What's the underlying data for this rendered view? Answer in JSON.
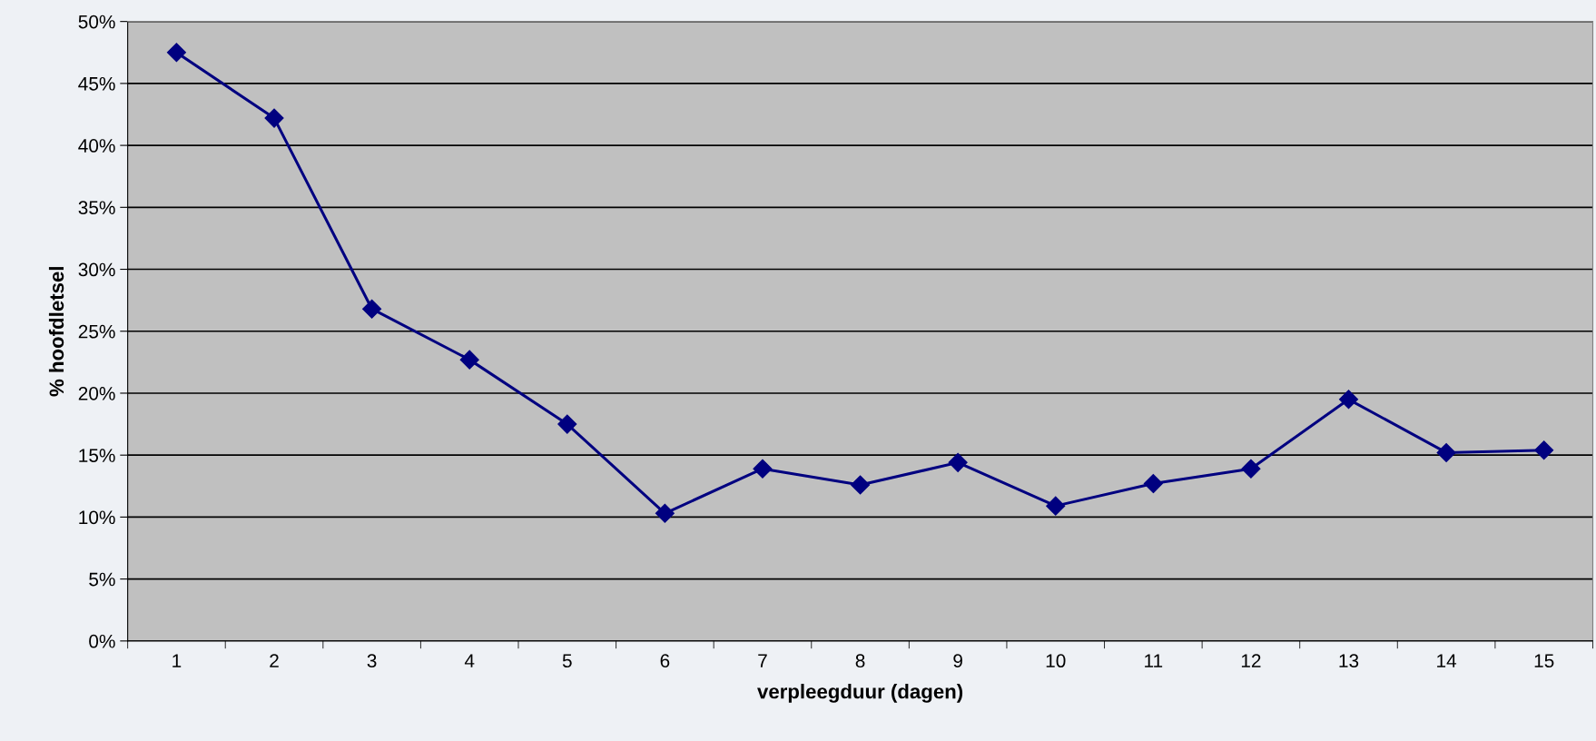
{
  "chart_data": {
    "type": "line",
    "xlabel": "verpleegduur (dagen)",
    "ylabel": "% hoofdletsel",
    "categories": [
      "1",
      "2",
      "3",
      "4",
      "5",
      "6",
      "7",
      "8",
      "9",
      "10",
      "11",
      "12",
      "13",
      "14",
      "15"
    ],
    "series": [
      {
        "color": "#000080",
        "values": [
          47.5,
          42.2,
          26.8,
          22.7,
          17.5,
          10.3,
          13.9,
          12.6,
          14.4,
          10.9,
          12.7,
          13.9,
          19.5,
          15.2,
          15.4
        ]
      }
    ],
    "ylim": [
      0,
      50
    ],
    "yticks": [
      {
        "value": 0,
        "label": "0%"
      },
      {
        "value": 5,
        "label": "5%"
      },
      {
        "value": 10,
        "label": "10%"
      },
      {
        "value": 15,
        "label": "15%"
      },
      {
        "value": 20,
        "label": "20%"
      },
      {
        "value": 25,
        "label": "25%"
      },
      {
        "value": 30,
        "label": "30%"
      },
      {
        "value": 35,
        "label": "35%"
      },
      {
        "value": 40,
        "label": "40%"
      },
      {
        "value": 45,
        "label": "45%"
      },
      {
        "value": 50,
        "label": "50%"
      }
    ],
    "grid": "y",
    "marker": "diamond",
    "line_style": "solid",
    "legend": false
  }
}
